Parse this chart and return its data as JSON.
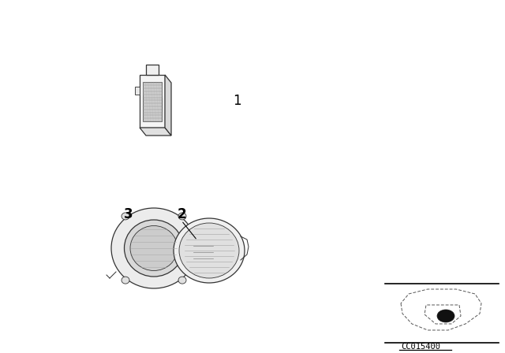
{
  "background_color": "#ffffff",
  "fig_width": 6.4,
  "fig_height": 4.48,
  "dpi": 100,
  "part1_label": "1",
  "part2_label": "2",
  "part3_label": "3",
  "code_label": "CC015400"
}
